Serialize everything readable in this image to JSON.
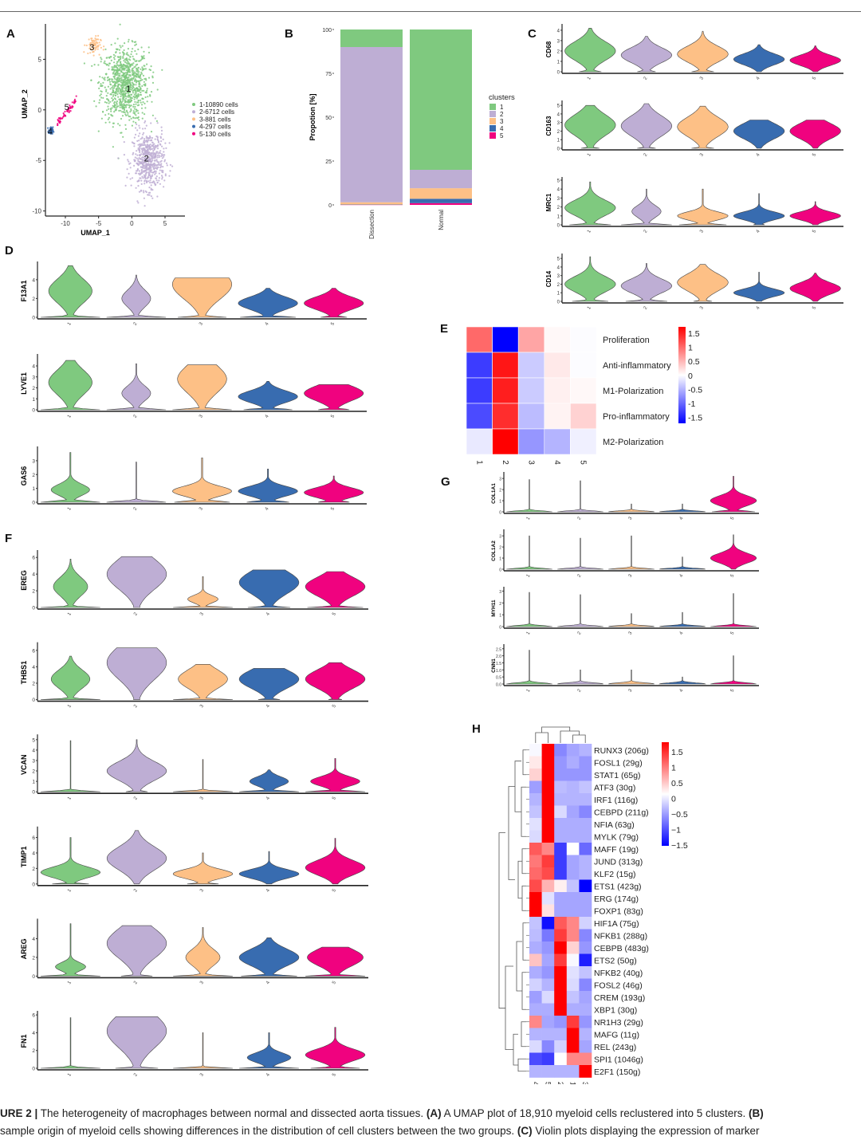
{
  "figure": {
    "colors": {
      "c1": "#7fc97f",
      "c2": "#beaed4",
      "c3": "#fdc086",
      "c4": "#386cb0",
      "c5": "#f0027f"
    },
    "panel_letters": [
      "A",
      "B",
      "C",
      "D",
      "E",
      "F",
      "G",
      "H"
    ],
    "caption": {
      "line1_label": "URE 2 |",
      "line1_text": " The heterogeneity of macrophages between normal and dissected aorta tissues. ",
      "line1_a": "(A)",
      "line1_a_text": " A UMAP plot of 18,910 myeloid cells reclustered into 5 clusters. ",
      "line1_b": "(B)",
      "line2_text": " sample origin of myeloid cells showing differences in the distribution of cell clusters between the two groups. ",
      "line2_c": "(C)",
      "line2_c_text": " Violin plots displaying the expression of marker"
    }
  },
  "chart_data": [
    {
      "panel": "A",
      "type": "scatter",
      "title": "",
      "xlabel": "UMAP_1",
      "ylabel": "UMAP_2",
      "xlim": [
        -13,
        8
      ],
      "ylim": [
        -10.5,
        8.5
      ],
      "xticks": [
        -10,
        -5,
        0,
        5
      ],
      "yticks": [
        -10,
        -5,
        0,
        5
      ],
      "legend": "right",
      "legend_entries": [
        "1-10890  cells",
        "2-6712  cells",
        "3-881  cells",
        "4-297  cells",
        "5-130  cells"
      ],
      "cluster_labels": [
        {
          "label": "1",
          "x": -0.5,
          "y": 2.1
        },
        {
          "label": "2",
          "x": 2.2,
          "y": -4.8
        },
        {
          "label": "3",
          "x": -6.0,
          "y": 6.2
        },
        {
          "label": "4",
          "x": -12.3,
          "y": -2.1
        },
        {
          "label": "5",
          "x": -9.8,
          "y": 0.3
        }
      ],
      "cluster_centers": [
        {
          "cluster": 1,
          "x": -1.0,
          "y": 2.5,
          "sx": 3.2,
          "sy": 3.3,
          "n": 10890
        },
        {
          "cluster": 2,
          "x": 2.5,
          "y": -5.0,
          "sx": 2.2,
          "sy": 2.6,
          "n": 6712
        },
        {
          "cluster": 3,
          "x": -5.8,
          "y": 6.4,
          "sx": 1.0,
          "sy": 0.8,
          "n": 881
        },
        {
          "cluster": 4,
          "x": -12.2,
          "y": -2.1,
          "sx": 0.3,
          "sy": 0.35,
          "n": 297
        },
        {
          "cluster": 5,
          "x": -9.8,
          "y": 0.2,
          "sx": 0.6,
          "sy": 0.4,
          "n": 130
        }
      ]
    },
    {
      "panel": "B",
      "type": "bar",
      "stacked": true,
      "title": "",
      "xlabel": "",
      "ylabel": "Propotion [%]",
      "ylim": [
        0,
        100
      ],
      "yticks": [
        0,
        25,
        50,
        75,
        100
      ],
      "categories": [
        "Dissection",
        "Normal"
      ],
      "legend_title": "clusters",
      "legend": "right",
      "series": [
        {
          "name": "5",
          "values": [
            0.1,
            1.0
          ]
        },
        {
          "name": "4",
          "values": [
            0.1,
            2.5
          ]
        },
        {
          "name": "3",
          "values": [
            1.3,
            6.0
          ]
        },
        {
          "name": "2",
          "values": [
            88.5,
            10.5
          ]
        },
        {
          "name": "1",
          "values": [
            10.0,
            80.0
          ]
        }
      ]
    },
    {
      "panel": "C",
      "type": "violin",
      "categories": [
        "1",
        "2",
        "3",
        "4",
        "5"
      ],
      "genes": [
        {
          "name": "CD68",
          "ymax": 4.3,
          "yticks": [
            0,
            1,
            2,
            3,
            4
          ],
          "max": [
            4.2,
            3.4,
            3.9,
            2.6,
            2.5
          ],
          "mode": [
            2.0,
            1.6,
            1.7,
            1.2,
            1.1
          ],
          "zero_frac": [
            0.35,
            0.3,
            0.35,
            0.0,
            0.0
          ]
        },
        {
          "name": "CD163",
          "ymax": 5.2,
          "yticks": [
            0,
            1,
            2,
            3,
            4,
            5
          ],
          "max": [
            5.0,
            5.2,
            4.9,
            3.3,
            3.3
          ],
          "mode": [
            2.7,
            2.6,
            2.5,
            2.0,
            2.0
          ],
          "zero_frac": [
            0.3,
            0.3,
            0.35,
            0.0,
            0.0
          ]
        },
        {
          "name": "MRC1",
          "ymax": 5.0,
          "yticks": [
            0,
            1,
            2,
            3,
            4,
            5
          ],
          "max": [
            4.8,
            4.0,
            4.0,
            3.5,
            2.6
          ],
          "mode": [
            1.9,
            1.5,
            1.0,
            1.0,
            1.0
          ],
          "zero_frac": [
            0.55,
            0.85,
            0.6,
            0.2,
            0.1
          ]
        },
        {
          "name": "CD14",
          "ymax": 5.2,
          "yticks": [
            0,
            1,
            2,
            3,
            4,
            5
          ],
          "max": [
            5.2,
            4.4,
            4.3,
            3.4,
            3.3
          ],
          "mode": [
            2.0,
            1.8,
            2.2,
            1.0,
            1.5
          ],
          "zero_frac": [
            0.5,
            0.55,
            0.3,
            0.1,
            0.05
          ]
        }
      ]
    },
    {
      "panel": "D",
      "type": "violin",
      "categories": [
        "1",
        "2",
        "3",
        "4",
        "5"
      ],
      "genes": [
        {
          "name": "F13A1",
          "ymax": 5.6,
          "yticks": [
            0,
            2,
            4
          ],
          "max": [
            5.5,
            4.5,
            4.2,
            3.1,
            3.1
          ],
          "mode": [
            2.8,
            2.0,
            3.5,
            1.5,
            1.5
          ],
          "zero_frac": [
            0.75,
            0.92,
            0.55,
            0.6,
            0.35
          ]
        },
        {
          "name": "LYVE1",
          "ymax": 4.8,
          "yticks": [
            0,
            1,
            2,
            3,
            4
          ],
          "max": [
            4.5,
            4.2,
            4.1,
            2.6,
            2.3
          ],
          "mode": [
            2.5,
            1.5,
            2.8,
            1.2,
            1.5
          ],
          "zero_frac": [
            0.75,
            0.92,
            0.7,
            0.55,
            0.4
          ]
        },
        {
          "name": "GAS6",
          "ymax": 3.8,
          "yticks": [
            0,
            1,
            2,
            3
          ],
          "max": [
            3.6,
            2.9,
            3.2,
            2.4,
            1.9
          ],
          "mode": [
            0.9,
            0.0,
            0.8,
            0.8,
            0.7
          ],
          "zero_frac": [
            0.8,
            1.0,
            0.6,
            0.5,
            0.4
          ]
        }
      ]
    },
    {
      "panel": "E",
      "type": "heatmap",
      "columns": [
        "1",
        "2",
        "3",
        "4",
        "5"
      ],
      "rows": [
        "Proliferation",
        "Anti-inflammatory",
        "M1-Polarization",
        "Pro-inflammatory",
        "M2-Polarization"
      ],
      "values": [
        [
          1.0,
          -1.7,
          0.6,
          0.05,
          -0.02
        ],
        [
          -1.3,
          1.55,
          -0.35,
          0.15,
          -0.02
        ],
        [
          -1.3,
          1.5,
          -0.35,
          0.1,
          0.05
        ],
        [
          -1.2,
          1.4,
          -0.45,
          0.08,
          0.3
        ],
        [
          -0.15,
          1.7,
          -0.7,
          -0.5,
          -0.1
        ]
      ],
      "colorbar_ticks": [
        "1.5",
        "1",
        "0.5",
        "0",
        "-0.5",
        "-1",
        "-1.5"
      ],
      "zlim": [
        -1.7,
        1.7
      ]
    },
    {
      "panel": "F",
      "type": "violin",
      "categories": [
        "1",
        "2",
        "3",
        "4",
        "5"
      ],
      "genes": [
        {
          "name": "EREG",
          "ymax": 6.5,
          "yticks": [
            0,
            2,
            4,
            6
          ],
          "max": [
            5.8,
            6.1,
            3.7,
            4.5,
            4.3
          ],
          "mode": [
            2.5,
            4.0,
            1.0,
            3.0,
            2.5
          ],
          "zero_frac": [
            0.85,
            0.1,
            0.9,
            0.5,
            0.6
          ]
        },
        {
          "name": "THBS1",
          "ymax": 6.6,
          "yticks": [
            0,
            2,
            4,
            6
          ],
          "max": [
            5.3,
            6.3,
            4.3,
            3.8,
            4.5
          ],
          "mode": [
            2.5,
            4.5,
            2.5,
            2.5,
            2.5
          ],
          "zero_frac": [
            0.8,
            0.1,
            0.7,
            0.3,
            0.2
          ]
        },
        {
          "name": "VCAN",
          "ymax": 5.2,
          "yticks": [
            0,
            1,
            2,
            3,
            4,
            5
          ],
          "max": [
            4.9,
            5.0,
            3.1,
            2.1,
            3.2
          ],
          "mode": [
            0.0,
            2.0,
            0.0,
            1.0,
            1.0
          ],
          "zero_frac": [
            1.0,
            0.3,
            1.0,
            0.8,
            0.7
          ]
        },
        {
          "name": "TIMP1",
          "ymax": 7.0,
          "yticks": [
            0,
            2,
            4,
            6
          ],
          "max": [
            6.0,
            6.9,
            4.0,
            4.2,
            5.9
          ],
          "mode": [
            1.5,
            3.3,
            1.3,
            1.3,
            2.1
          ],
          "zero_frac": [
            0.45,
            0.05,
            0.4,
            0.05,
            0.05
          ]
        },
        {
          "name": "AREG",
          "ymax": 5.8,
          "yticks": [
            0,
            2,
            4
          ],
          "max": [
            5.6,
            5.4,
            5.2,
            4.1,
            3.1
          ],
          "mode": [
            1.0,
            3.5,
            2.0,
            2.0,
            2.0
          ],
          "zero_frac": [
            0.9,
            0.4,
            0.85,
            0.6,
            0.65
          ]
        },
        {
          "name": "FN1",
          "ymax": 6.1,
          "yticks": [
            0,
            2,
            4,
            6
          ],
          "max": [
            5.7,
            5.8,
            4.0,
            4.0,
            4.6
          ],
          "mode": [
            0.0,
            4.2,
            0.0,
            1.2,
            1.5
          ],
          "zero_frac": [
            1.0,
            0.5,
            1.0,
            0.75,
            0.55
          ]
        }
      ]
    },
    {
      "panel": "G",
      "type": "violin",
      "categories": [
        "1",
        "2",
        "3",
        "4",
        "5"
      ],
      "genes": [
        {
          "name": "COL1A1",
          "ymax": 3.3,
          "yticks": [
            "0",
            "1",
            "2",
            "3"
          ],
          "max": [
            2.9,
            2.8,
            0.7,
            0.7,
            3.2
          ],
          "mode": [
            0,
            0,
            0,
            0,
            1.0
          ],
          "zero_frac": [
            1,
            1,
            1,
            1,
            0.6
          ]
        },
        {
          "name": "COL1A2",
          "ymax": 3.3,
          "yticks": [
            "0",
            "1",
            "2",
            "3"
          ],
          "max": [
            3.0,
            2.8,
            3.0,
            1.1,
            3.1
          ],
          "mode": [
            0,
            0,
            0,
            0,
            1.0
          ],
          "zero_frac": [
            1,
            1,
            1,
            1,
            0.0
          ]
        },
        {
          "name": "MYH11",
          "ymax": 3.1,
          "yticks": [
            "0",
            "1",
            "2",
            "3"
          ],
          "max": [
            2.9,
            2.7,
            1.1,
            1.2,
            2.8
          ],
          "mode": [
            0,
            0,
            0,
            0,
            0
          ],
          "zero_frac": [
            1,
            1,
            1,
            1,
            1
          ]
        },
        {
          "name": "CNN1",
          "ymax": 2.6,
          "yticks": [
            "0.0",
            "0.5",
            "1.0",
            "1.5",
            "2.0",
            "2.5"
          ],
          "max": [
            2.4,
            1.0,
            1.0,
            0.5,
            2.0
          ],
          "mode": [
            0,
            0,
            0,
            0,
            0
          ],
          "zero_frac": [
            1,
            1,
            1,
            1,
            1
          ]
        }
      ]
    },
    {
      "panel": "H",
      "type": "heatmap",
      "columns": [
        "4",
        "5",
        "2",
        "1",
        "3"
      ],
      "rows": [
        "RUNX3 (206g)",
        "FOSL1 (29g)",
        "STAT1 (65g)",
        "ATF3 (30g)",
        "IRF1 (116g)",
        "CEBPD (211g)",
        "NFIA (63g)",
        "MYLK (79g)",
        "MAFF (19g)",
        "JUND (313g)",
        "KLF2 (15g)",
        "ETS1 (423g)",
        "ERG (174g)",
        "FOXP1 (83g)",
        "HIF1A (75g)",
        "NFKB1 (288g)",
        "CEBPB (483g)",
        "ETS2 (50g)",
        "NFKB2 (40g)",
        "FOSL2 (46g)",
        "CREM (193g)",
        "XBP1 (30g)",
        "NR1H3 (29g)",
        "MAFG (11g)",
        "REL (243g)",
        "SPI1 (1046g)",
        "E2F1 (150g)"
      ],
      "values": [
        [
          -0.05,
          1.7,
          -0.8,
          -0.6,
          -0.5
        ],
        [
          0.15,
          1.7,
          -0.7,
          -0.55,
          -0.7
        ],
        [
          0.3,
          1.7,
          -0.7,
          -0.7,
          -0.7
        ],
        [
          -0.65,
          1.7,
          -0.45,
          -0.5,
          -0.4
        ],
        [
          -0.5,
          1.7,
          -0.5,
          -0.5,
          -0.5
        ],
        [
          -0.4,
          1.7,
          -0.25,
          -0.6,
          -0.8
        ],
        [
          -0.2,
          1.7,
          -0.55,
          -0.55,
          -0.55
        ],
        [
          -0.25,
          1.7,
          -0.55,
          -0.55,
          -0.55
        ],
        [
          1.1,
          0.8,
          -1.3,
          0.0,
          -1.0
        ],
        [
          0.9,
          1.3,
          -1.3,
          -0.6,
          -0.5
        ],
        [
          1.0,
          1.2,
          -1.3,
          -0.6,
          -0.5
        ],
        [
          1.2,
          0.5,
          0.1,
          -0.4,
          -1.7
        ],
        [
          1.7,
          -0.2,
          -0.6,
          -0.6,
          -0.6
        ],
        [
          1.7,
          0.2,
          -0.6,
          -0.6,
          -0.6
        ],
        [
          -0.4,
          -1.6,
          1.1,
          0.8,
          -0.3
        ],
        [
          -0.45,
          -0.9,
          1.3,
          0.8,
          -0.8
        ],
        [
          -0.55,
          -0.7,
          1.7,
          0.3,
          -0.7
        ],
        [
          0.4,
          -0.6,
          1.3,
          -0.05,
          -1.5
        ],
        [
          -0.55,
          -0.7,
          1.7,
          -0.2,
          -0.4
        ],
        [
          -0.3,
          -0.5,
          1.7,
          -0.25,
          -0.8
        ],
        [
          -0.65,
          -0.25,
          1.7,
          -0.4,
          -0.6
        ],
        [
          -0.55,
          -0.55,
          1.7,
          -0.55,
          -0.55
        ],
        [
          0.8,
          -0.6,
          -0.7,
          1.3,
          -0.7
        ],
        [
          -0.5,
          -0.5,
          -0.5,
          1.7,
          -0.5
        ],
        [
          -0.25,
          -0.8,
          -0.3,
          1.7,
          -0.6
        ],
        [
          -1.2,
          -1.3,
          0.0,
          0.8,
          0.8
        ],
        [
          -0.5,
          -0.5,
          -0.5,
          -0.5,
          1.7
        ]
      ],
      "colorbar_ticks": [
        "1.5",
        "1",
        "0.5",
        "0",
        "−0.5",
        "−1",
        "−1.5"
      ],
      "zlim": [
        -1.7,
        1.7
      ]
    }
  ]
}
